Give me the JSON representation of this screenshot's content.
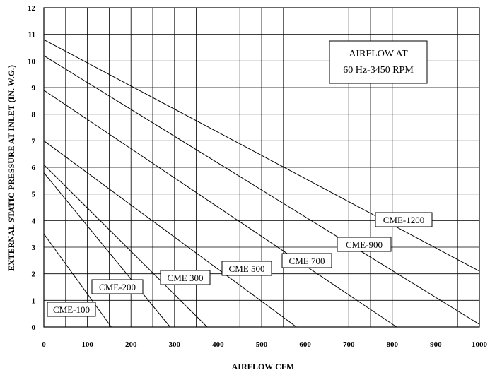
{
  "chart_data": {
    "type": "line",
    "title": "",
    "xlabel": "AIRFLOW CFM",
    "ylabel": "EXTERNAL STATIC PRESSURE AT INLET (IN. W.G.)",
    "xlim": [
      0,
      1000
    ],
    "ylim": [
      0,
      12
    ],
    "xticks": [
      "0",
      "100",
      "200",
      "300",
      "400",
      "500",
      "600",
      "700",
      "800",
      "900",
      "1000"
    ],
    "yticks": [
      "0",
      "1",
      "2",
      "3",
      "4",
      "5",
      "6",
      "7",
      "8",
      "9",
      "10",
      "11",
      "12"
    ],
    "grid": true,
    "legend": "none",
    "annotation": [
      "AIRFLOW AT",
      "60 Hz-3450 RPM"
    ],
    "series": [
      {
        "name": "CME-100",
        "x": [
          0,
          155
        ],
        "y": [
          3.5,
          0
        ]
      },
      {
        "name": "CME-200",
        "x": [
          0,
          290
        ],
        "y": [
          5.8,
          0
        ]
      },
      {
        "name": "CME 300",
        "x": [
          0,
          375
        ],
        "y": [
          6.1,
          0
        ]
      },
      {
        "name": "CME 500",
        "x": [
          0,
          580
        ],
        "y": [
          7.0,
          0
        ]
      },
      {
        "name": "CME 700",
        "x": [
          0,
          810
        ],
        "y": [
          8.9,
          0
        ]
      },
      {
        "name": "CME-900",
        "x": [
          0,
          1000
        ],
        "y": [
          10.2,
          0.1
        ]
      },
      {
        "name": "CME-1200",
        "x": [
          0,
          1000
        ],
        "y": [
          10.8,
          2.1
        ]
      }
    ]
  }
}
